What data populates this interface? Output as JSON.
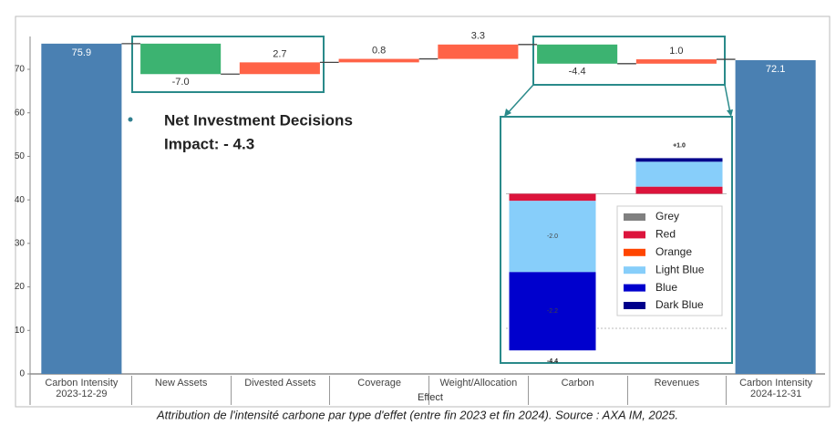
{
  "chart_data": [
    {
      "type": "waterfall",
      "categories": [
        "Carbon Intensity 2023-12-29",
        "New Assets",
        "Divested Assets",
        "Coverage",
        "Weight/Allocation",
        "Carbon",
        "Revenues",
        "Carbon Intensity 2024-12-31"
      ],
      "values": [
        75.9,
        -7.0,
        2.7,
        0.8,
        3.3,
        -4.4,
        1.0,
        72.1
      ],
      "value_labels": [
        "75.9",
        "-7.0",
        "2.7",
        "0.8",
        "3.3",
        "-4.4",
        "1.0",
        "72.1"
      ],
      "measure": [
        "total",
        "relative",
        "relative",
        "relative",
        "relative",
        "relative",
        "relative",
        "total"
      ],
      "colors": {
        "total": "#4a80b2",
        "increase": "#ff6347",
        "decrease": "#3cb371"
      },
      "xlabel": "Effect",
      "ylim": [
        0,
        76.5
      ],
      "yticks": [
        0,
        10,
        20,
        30,
        40,
        50,
        60,
        70
      ],
      "annotations": [
        "Net Investment Decisions",
        "Impact:  - 4.3"
      ],
      "caption": "Attribution de l'intensité carbone par type d'effet (entre fin 2023 et fin 2024). Source : AXA IM, 2025."
    },
    {
      "type": "stacked_bar",
      "ylim": [
        -4.6,
        1.6
      ],
      "series": [
        {
          "name": "Grey",
          "color": "#808080",
          "values": [
            0,
            0
          ]
        },
        {
          "name": "Red",
          "color": "#dc143c",
          "values": [
            -0.2,
            0.2
          ]
        },
        {
          "name": "Orange",
          "color": "#ff4500",
          "values": [
            0,
            0
          ]
        },
        {
          "name": "Light Blue",
          "color": "#87cefa",
          "values": [
            -2.0,
            0.7
          ],
          "value_labels": [
            "-2.0",
            null
          ]
        },
        {
          "name": "Blue",
          "color": "#0000cd",
          "values": [
            -2.2,
            0
          ],
          "value_labels": [
            "-2.2",
            null
          ]
        },
        {
          "name": "Dark Blue",
          "color": "#00008b",
          "values": [
            0,
            0.1
          ]
        }
      ],
      "totals": [
        -4.4,
        1.0
      ],
      "total_labels": [
        "-4.4",
        "+1.0"
      ]
    }
  ]
}
